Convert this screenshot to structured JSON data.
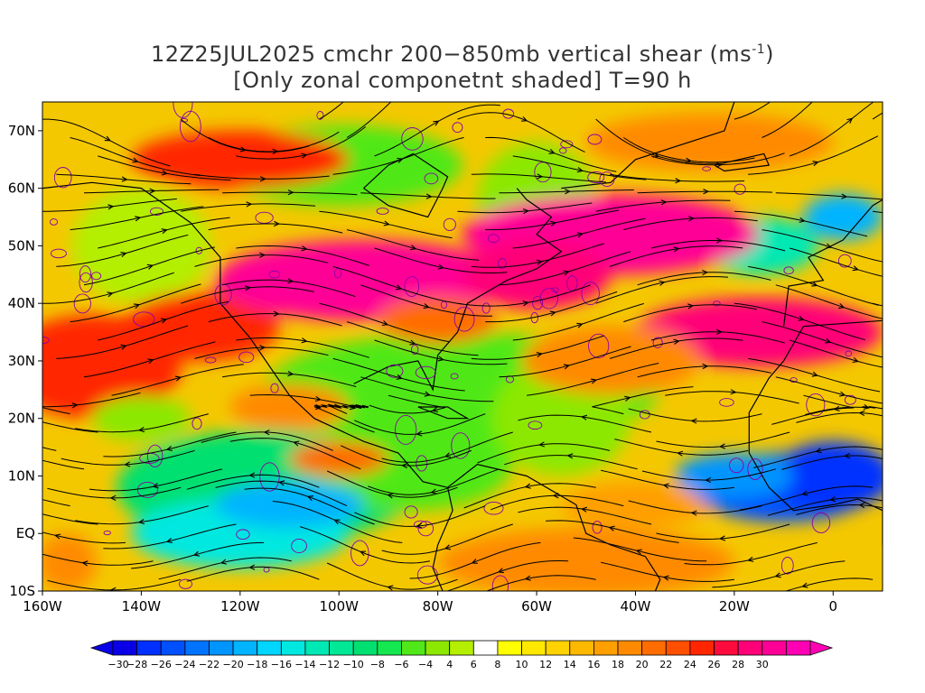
{
  "title": {
    "line1_main": "12Z25JUL2025 cmchr 200−850mb vertical shear (ms",
    "line1_sup": "-1",
    "line1_end": ")",
    "line2": "[Only zonal componetnt shaded] T=90 h"
  },
  "map": {
    "lon_range": [
      -160,
      10
    ],
    "lat_range": [
      -10,
      75
    ],
    "lon_ticks": [
      {
        "value": -160,
        "label": "160W"
      },
      {
        "value": -140,
        "label": "140W"
      },
      {
        "value": -120,
        "label": "120W"
      },
      {
        "value": -100,
        "label": "100W"
      },
      {
        "value": -80,
        "label": "80W"
      },
      {
        "value": -60,
        "label": "60W"
      },
      {
        "value": -40,
        "label": "40W"
      },
      {
        "value": -20,
        "label": "20W"
      },
      {
        "value": 0,
        "label": "0"
      }
    ],
    "lat_ticks": [
      {
        "value": 70,
        "label": "70N"
      },
      {
        "value": 60,
        "label": "60N"
      },
      {
        "value": 50,
        "label": "50N"
      },
      {
        "value": 40,
        "label": "40N"
      },
      {
        "value": 30,
        "label": "30N"
      },
      {
        "value": 20,
        "label": "20N"
      },
      {
        "value": 10,
        "label": "10N"
      },
      {
        "value": 0,
        "label": "EQ"
      },
      {
        "value": -10,
        "label": "10S"
      }
    ],
    "shading_field": "zonal component of 200-850mb vertical shear",
    "overlays": [
      "streamlines",
      "coastlines",
      "political boundaries",
      "shear contours"
    ]
  },
  "colorbar": {
    "labels": [
      "-30",
      "-28",
      "-26",
      "-24",
      "-22",
      "-20",
      "-18",
      "-16",
      "-14",
      "-12",
      "-10",
      "-8",
      "-6",
      "-4",
      "4",
      "6",
      "8",
      "10",
      "12",
      "14",
      "16",
      "18",
      "20",
      "22",
      "24",
      "26",
      "28",
      "30"
    ],
    "colors": [
      "#0a00e8",
      "#0030ff",
      "#0050ff",
      "#0073ff",
      "#0094ff",
      "#00b4ff",
      "#00d6ff",
      "#00e8e0",
      "#00e8b4",
      "#00e896",
      "#00e070",
      "#14e850",
      "#50e818",
      "#8ce800",
      "#b4ee00",
      "#ffffff",
      "#ffff00",
      "#ffe800",
      "#ffd200",
      "#ffb800",
      "#ff9f00",
      "#ff8a00",
      "#ff6c00",
      "#ff4f00",
      "#ff2600",
      "#ff0a3c",
      "#ff0078",
      "#ff0096",
      "#ff00b4"
    ]
  }
}
